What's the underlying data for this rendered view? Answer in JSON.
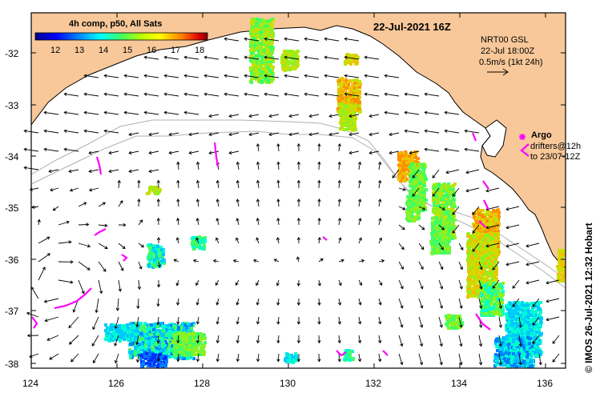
{
  "map": {
    "title": "22-Jul-2021 16Z",
    "colorbar": {
      "title": "4h comp, p50, All Sats",
      "ticks": [
        "12",
        "13",
        "14",
        "15",
        "16",
        "17",
        "18"
      ],
      "min": 11.3,
      "max": 18.3
    },
    "current_legend": {
      "line1": "NRT00 GSL",
      "line2": "22-Jul 18:00Z",
      "line3": "0.5m/s (1kt 24h)"
    },
    "argo_legend": {
      "argo_label": "Argo",
      "drifters_line1": "drifters@12h",
      "drifters_line2": "to 23/07-12Z"
    },
    "credit": "© IMOS 26-Jul-2021 12:32 Hobart",
    "lat_labels": [
      "-32",
      "-33",
      "-34",
      "-35",
      "-36",
      "-37",
      "-38"
    ],
    "lon_labels": [
      "124",
      "126",
      "128",
      "130",
      "132",
      "134",
      "136"
    ],
    "extent": {
      "lon_min": 124,
      "lon_max": 136.7,
      "lat_min": -38.1,
      "lat_max": -31.3
    },
    "colors": {
      "land": "#f8c89a",
      "argo": "#ff00ff",
      "bathy": "#b0b0b0"
    }
  }
}
